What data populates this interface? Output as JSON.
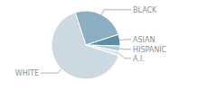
{
  "chart_data": {
    "type": "pie",
    "categories": [
      "WHITE",
      "BLACK",
      "ASIAN",
      "HISPANIC",
      "A.I."
    ],
    "values": [
      65,
      25,
      5.5,
      2.5,
      2
    ],
    "colors": [
      "#ccd9e0",
      "#8cafc4",
      "#5b8fa8",
      "#b0cdd8",
      "#d8e7ed"
    ]
  }
}
